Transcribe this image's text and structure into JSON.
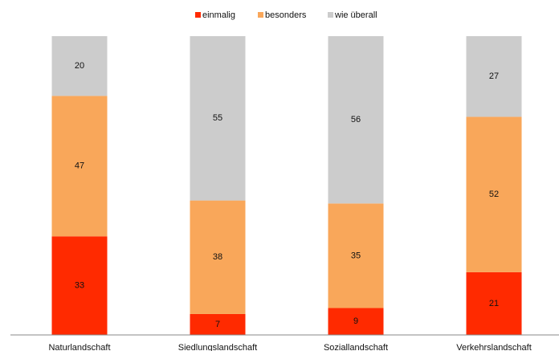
{
  "chart_data": {
    "type": "stacked_bar",
    "categories": [
      "Naturlandschaft",
      "Siedlungslandschaft",
      "Soziallandschaft",
      "Verkehrslandschaft"
    ],
    "series": [
      {
        "name": "einmalig",
        "color": "#ff2a00",
        "values": [
          33,
          7,
          9,
          21
        ]
      },
      {
        "name": "besonders",
        "color": "#f9a75a",
        "values": [
          47,
          38,
          35,
          52
        ]
      },
      {
        "name": "wie überall",
        "color": "#cccccc",
        "values": [
          20,
          55,
          56,
          27
        ]
      }
    ],
    "ylim": [
      0,
      100
    ],
    "legend": "top"
  }
}
